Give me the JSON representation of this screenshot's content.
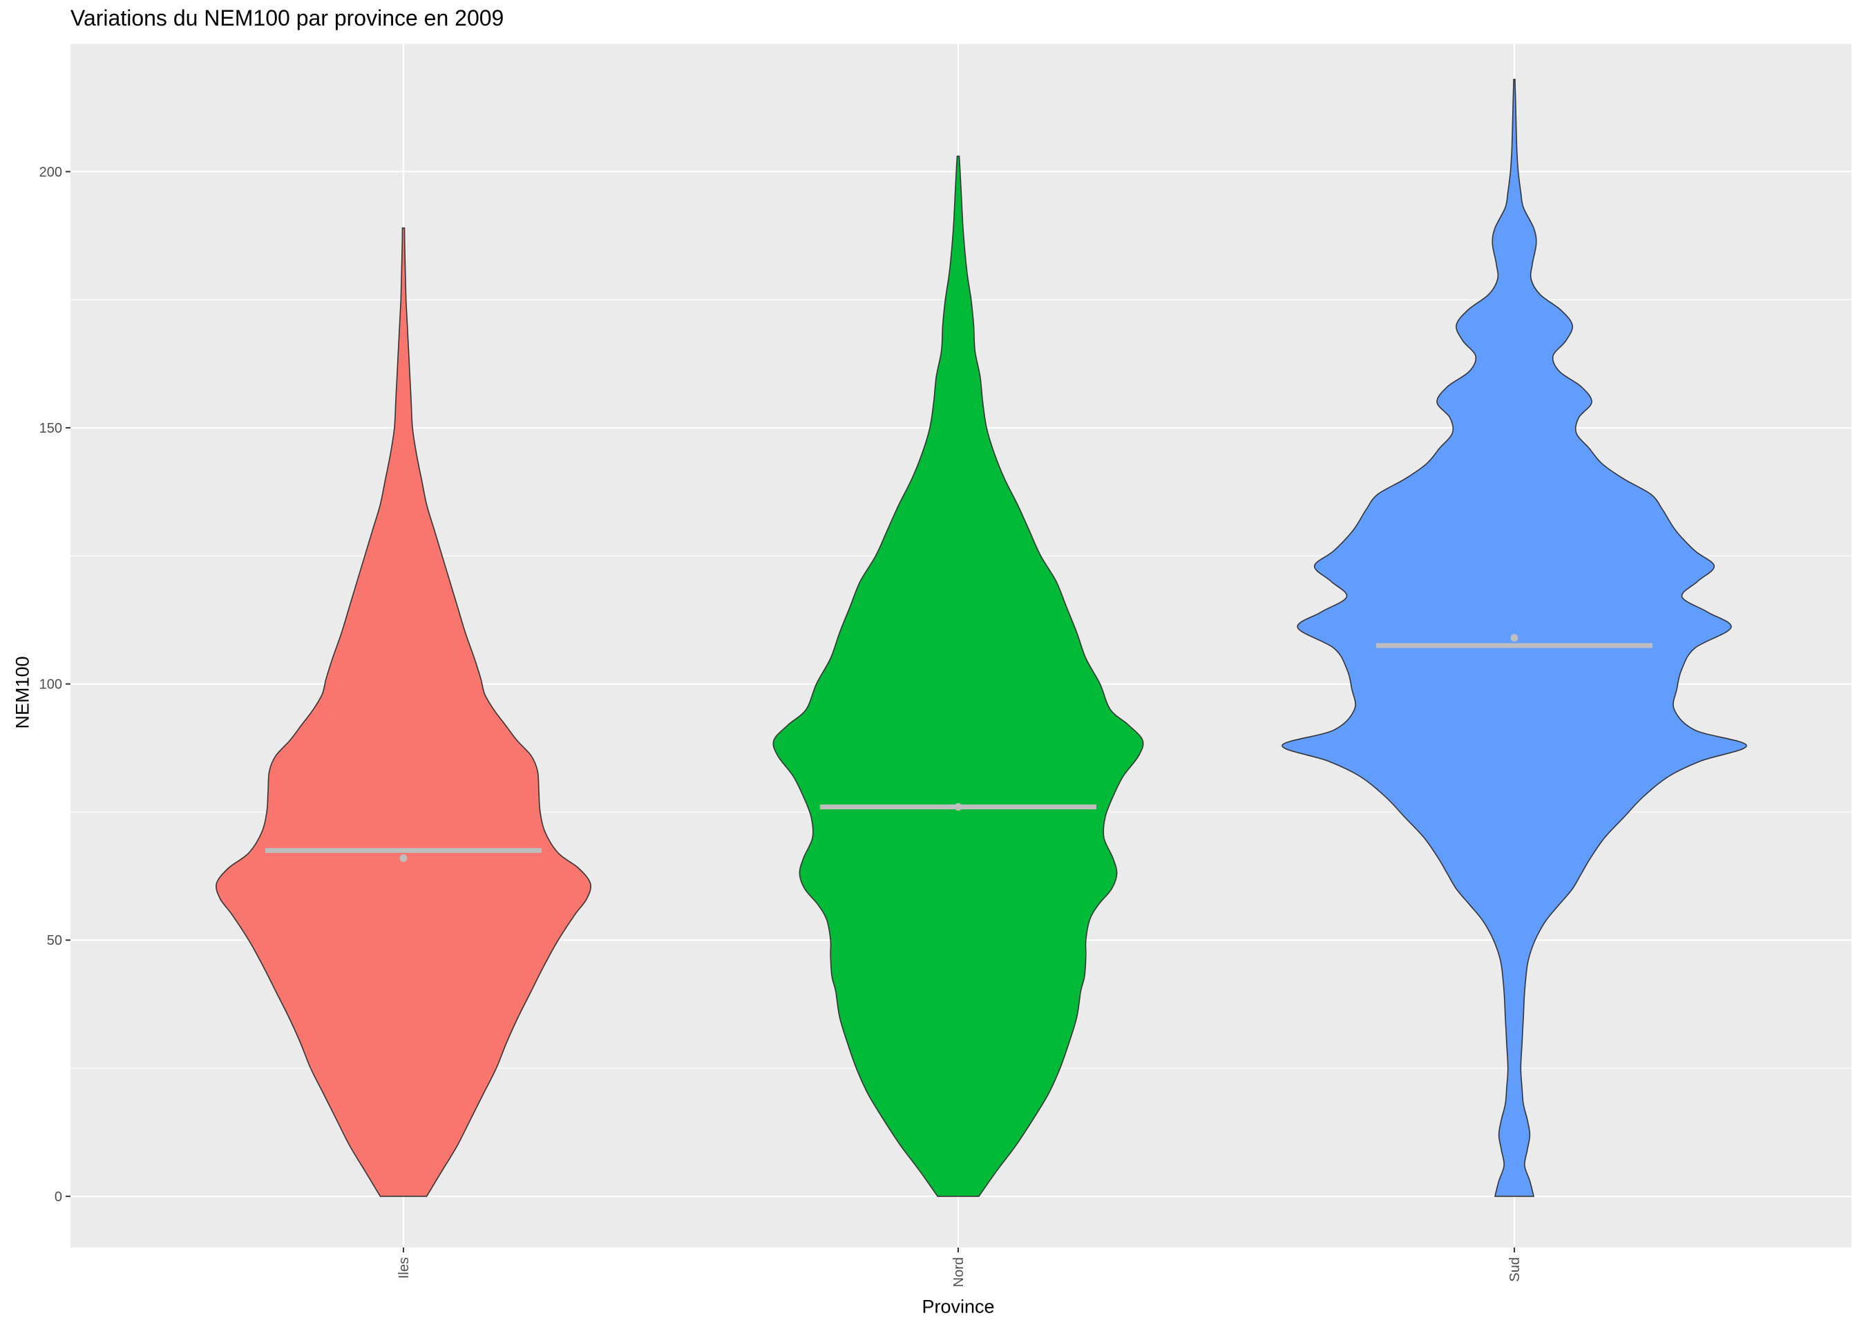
{
  "chart_data": {
    "type": "violin",
    "title": "Variations du NEM100 par province en 2009",
    "xlabel": "Province",
    "ylabel": "NEM100",
    "categories": [
      "Iles",
      "Nord",
      "Sud"
    ],
    "ylim": [
      -10,
      225
    ],
    "yticks": [
      0,
      50,
      100,
      150,
      200
    ],
    "grid": true,
    "colors": {
      "Iles": "#F8766D",
      "Nord": "#00BA38",
      "Sud": "#619CFF",
      "panel": "#EBEBEB",
      "grid": "#FFFFFF",
      "summary": "#BEBEBE",
      "outline": "#333333"
    },
    "series": [
      {
        "category": "Iles",
        "min": 0,
        "max": 189,
        "median": 67.5,
        "mean": 66,
        "profile": [
          [
            0,
            0.18
          ],
          [
            5,
            0.3
          ],
          [
            10,
            0.42
          ],
          [
            15,
            0.52
          ],
          [
            20,
            0.62
          ],
          [
            25,
            0.72
          ],
          [
            30,
            0.8
          ],
          [
            35,
            0.89
          ],
          [
            40,
            0.99
          ],
          [
            45,
            1.09
          ],
          [
            50,
            1.2
          ],
          [
            55,
            1.33
          ],
          [
            58,
            1.42
          ],
          [
            61,
            1.45
          ],
          [
            64,
            1.36
          ],
          [
            67,
            1.2
          ],
          [
            71,
            1.1
          ],
          [
            75,
            1.06
          ],
          [
            79,
            1.05
          ],
          [
            83,
            1.04
          ],
          [
            86,
            0.99
          ],
          [
            89,
            0.88
          ],
          [
            92,
            0.79
          ],
          [
            95,
            0.7
          ],
          [
            98,
            0.63
          ],
          [
            101,
            0.6
          ],
          [
            105,
            0.55
          ],
          [
            110,
            0.48
          ],
          [
            115,
            0.42
          ],
          [
            120,
            0.36
          ],
          [
            125,
            0.3
          ],
          [
            130,
            0.24
          ],
          [
            135,
            0.18
          ],
          [
            140,
            0.14
          ],
          [
            145,
            0.1
          ],
          [
            150,
            0.07
          ],
          [
            155,
            0.06
          ],
          [
            160,
            0.05
          ],
          [
            165,
            0.04
          ],
          [
            170,
            0.03
          ],
          [
            175,
            0.02
          ],
          [
            180,
            0.015
          ],
          [
            185,
            0.01
          ],
          [
            189,
            0.008
          ]
        ]
      },
      {
        "category": "Nord",
        "min": 0,
        "max": 203,
        "median": 76,
        "mean": 76,
        "profile": [
          [
            0,
            0.16
          ],
          [
            5,
            0.3
          ],
          [
            10,
            0.45
          ],
          [
            15,
            0.58
          ],
          [
            20,
            0.7
          ],
          [
            25,
            0.79
          ],
          [
            30,
            0.86
          ],
          [
            35,
            0.92
          ],
          [
            40,
            0.95
          ],
          [
            43,
            0.98
          ],
          [
            47,
            0.99
          ],
          [
            50,
            0.99
          ],
          [
            54,
            1.02
          ],
          [
            57,
            1.09
          ],
          [
            60,
            1.19
          ],
          [
            63,
            1.23
          ],
          [
            66,
            1.2
          ],
          [
            70,
            1.13
          ],
          [
            74,
            1.14
          ],
          [
            78,
            1.2
          ],
          [
            82,
            1.28
          ],
          [
            86,
            1.4
          ],
          [
            89,
            1.43
          ],
          [
            92,
            1.32
          ],
          [
            95,
            1.18
          ],
          [
            100,
            1.1
          ],
          [
            105,
            0.99
          ],
          [
            110,
            0.92
          ],
          [
            115,
            0.84
          ],
          [
            120,
            0.76
          ],
          [
            125,
            0.64
          ],
          [
            130,
            0.55
          ],
          [
            135,
            0.46
          ],
          [
            140,
            0.36
          ],
          [
            145,
            0.28
          ],
          [
            150,
            0.22
          ],
          [
            155,
            0.19
          ],
          [
            160,
            0.17
          ],
          [
            165,
            0.13
          ],
          [
            170,
            0.12
          ],
          [
            175,
            0.1
          ],
          [
            180,
            0.07
          ],
          [
            185,
            0.05
          ],
          [
            190,
            0.035
          ],
          [
            195,
            0.025
          ],
          [
            200,
            0.015
          ],
          [
            203,
            0.008
          ]
        ]
      },
      {
        "category": "Sud",
        "min": 0,
        "max": 218,
        "median": 107.5,
        "mean": 109,
        "profile": [
          [
            0,
            0.15
          ],
          [
            3,
            0.12
          ],
          [
            6,
            0.08
          ],
          [
            9,
            0.1
          ],
          [
            12,
            0.12
          ],
          [
            15,
            0.1
          ],
          [
            18,
            0.07
          ],
          [
            21,
            0.06
          ],
          [
            25,
            0.05
          ],
          [
            30,
            0.06
          ],
          [
            35,
            0.07
          ],
          [
            40,
            0.08
          ],
          [
            45,
            0.1
          ],
          [
            48,
            0.13
          ],
          [
            51,
            0.18
          ],
          [
            54,
            0.25
          ],
          [
            57,
            0.35
          ],
          [
            60,
            0.45
          ],
          [
            63,
            0.52
          ],
          [
            66,
            0.59
          ],
          [
            70,
            0.7
          ],
          [
            74,
            0.85
          ],
          [
            78,
            1.0
          ],
          [
            82,
            1.2
          ],
          [
            85,
            1.45
          ],
          [
            88,
            1.8
          ],
          [
            91,
            1.4
          ],
          [
            95,
            1.24
          ],
          [
            99,
            1.26
          ],
          [
            103,
            1.3
          ],
          [
            107,
            1.4
          ],
          [
            111,
            1.68
          ],
          [
            114,
            1.5
          ],
          [
            117,
            1.3
          ],
          [
            120,
            1.42
          ],
          [
            123,
            1.55
          ],
          [
            126,
            1.4
          ],
          [
            130,
            1.25
          ],
          [
            134,
            1.15
          ],
          [
            137,
            1.06
          ],
          [
            140,
            0.85
          ],
          [
            143,
            0.68
          ],
          [
            146,
            0.58
          ],
          [
            149,
            0.48
          ],
          [
            152,
            0.5
          ],
          [
            155,
            0.6
          ],
          [
            158,
            0.52
          ],
          [
            161,
            0.35
          ],
          [
            164,
            0.3
          ],
          [
            167,
            0.4
          ],
          [
            170,
            0.45
          ],
          [
            173,
            0.36
          ],
          [
            176,
            0.2
          ],
          [
            179,
            0.13
          ],
          [
            182,
            0.14
          ],
          [
            186,
            0.17
          ],
          [
            189,
            0.15
          ],
          [
            193,
            0.07
          ],
          [
            196,
            0.05
          ],
          [
            200,
            0.03
          ],
          [
            204,
            0.02
          ],
          [
            208,
            0.015
          ],
          [
            213,
            0.01
          ],
          [
            218,
            0.005
          ]
        ]
      }
    ]
  }
}
